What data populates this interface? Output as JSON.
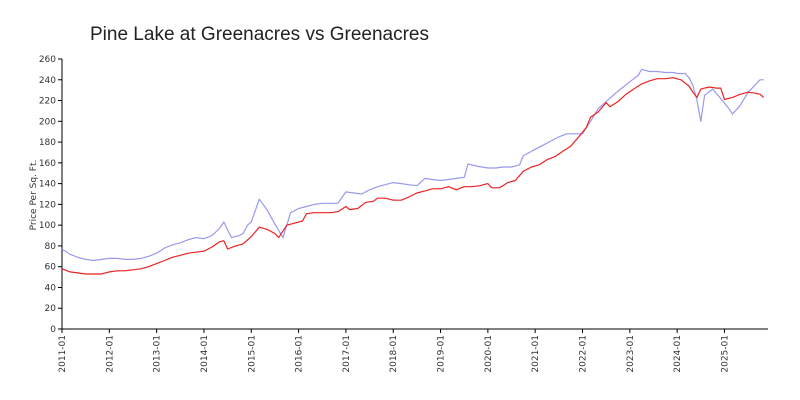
{
  "chart_data": {
    "type": "line",
    "title": "Pine Lake at Greenacres vs Greenacres",
    "xlabel": "",
    "ylabel": "Price Per Sq. Ft.",
    "ylim": [
      0,
      260
    ],
    "yticks": [
      0,
      20,
      40,
      60,
      80,
      100,
      120,
      140,
      160,
      180,
      200,
      220,
      240,
      260
    ],
    "xlim": [
      2011.0,
      2025.92
    ],
    "xticks": [
      {
        "x": 2011,
        "label": "2011-01"
      },
      {
        "x": 2012,
        "label": "2012-01"
      },
      {
        "x": 2013,
        "label": "2013-01"
      },
      {
        "x": 2014,
        "label": "2014-01"
      },
      {
        "x": 2015,
        "label": "2015-01"
      },
      {
        "x": 2016,
        "label": "2016-01"
      },
      {
        "x": 2017,
        "label": "2017-01"
      },
      {
        "x": 2018,
        "label": "2018-01"
      },
      {
        "x": 2019,
        "label": "2019-01"
      },
      {
        "x": 2020,
        "label": "2020-01"
      },
      {
        "x": 2021,
        "label": "2021-01"
      },
      {
        "x": 2022,
        "label": "2022-01"
      },
      {
        "x": 2023,
        "label": "2023-01"
      },
      {
        "x": 2024,
        "label": "2024-01"
      },
      {
        "x": 2025,
        "label": "2025-01"
      }
    ],
    "grid": false,
    "series": [
      {
        "name": "Pine Lake at Greenacres",
        "color": "#9999ee",
        "points": [
          [
            2011.0,
            77
          ],
          [
            2011.17,
            72
          ],
          [
            2011.33,
            69
          ],
          [
            2011.5,
            67
          ],
          [
            2011.67,
            66
          ],
          [
            2011.83,
            67
          ],
          [
            2012.0,
            68
          ],
          [
            2012.17,
            68
          ],
          [
            2012.33,
            67
          ],
          [
            2012.5,
            67
          ],
          [
            2012.67,
            68
          ],
          [
            2012.83,
            70
          ],
          [
            2013.0,
            73
          ],
          [
            2013.17,
            78
          ],
          [
            2013.33,
            81
          ],
          [
            2013.5,
            83
          ],
          [
            2013.67,
            86
          ],
          [
            2013.83,
            88
          ],
          [
            2014.0,
            87
          ],
          [
            2014.17,
            90
          ],
          [
            2014.33,
            97
          ],
          [
            2014.42,
            103
          ],
          [
            2014.58,
            88
          ],
          [
            2014.75,
            90
          ],
          [
            2014.83,
            92
          ],
          [
            2014.92,
            100
          ],
          [
            2015.0,
            103
          ],
          [
            2015.17,
            125
          ],
          [
            2015.33,
            115
          ],
          [
            2015.5,
            101
          ],
          [
            2015.67,
            88
          ],
          [
            2015.83,
            112
          ],
          [
            2016.0,
            116
          ],
          [
            2016.17,
            118
          ],
          [
            2016.33,
            120
          ],
          [
            2016.5,
            121
          ],
          [
            2016.67,
            121
          ],
          [
            2016.83,
            121
          ],
          [
            2017.0,
            132
          ],
          [
            2017.17,
            131
          ],
          [
            2017.33,
            130
          ],
          [
            2017.5,
            134
          ],
          [
            2017.67,
            137
          ],
          [
            2017.83,
            139
          ],
          [
            2018.0,
            141
          ],
          [
            2018.17,
            140
          ],
          [
            2018.33,
            139
          ],
          [
            2018.5,
            138
          ],
          [
            2018.67,
            145
          ],
          [
            2018.83,
            144
          ],
          [
            2019.0,
            143
          ],
          [
            2019.17,
            144
          ],
          [
            2019.33,
            145
          ],
          [
            2019.5,
            146
          ],
          [
            2019.58,
            159
          ],
          [
            2019.75,
            157
          ],
          [
            2020.0,
            155
          ],
          [
            2020.17,
            155
          ],
          [
            2020.33,
            156
          ],
          [
            2020.5,
            156
          ],
          [
            2020.67,
            158
          ],
          [
            2020.75,
            167
          ],
          [
            2020.92,
            171
          ],
          [
            2021.0,
            173
          ],
          [
            2021.17,
            177
          ],
          [
            2021.33,
            181
          ],
          [
            2021.5,
            185
          ],
          [
            2021.67,
            188
          ],
          [
            2021.83,
            188
          ],
          [
            2022.0,
            188
          ],
          [
            2022.17,
            200
          ],
          [
            2022.33,
            212
          ],
          [
            2022.5,
            219
          ],
          [
            2022.67,
            226
          ],
          [
            2022.83,
            232
          ],
          [
            2023.0,
            238
          ],
          [
            2023.17,
            244
          ],
          [
            2023.25,
            250
          ],
          [
            2023.42,
            248
          ],
          [
            2023.58,
            248
          ],
          [
            2023.75,
            247
          ],
          [
            2023.92,
            247
          ],
          [
            2024.0,
            246
          ],
          [
            2024.17,
            246
          ],
          [
            2024.25,
            242
          ],
          [
            2024.33,
            235
          ],
          [
            2024.42,
            220
          ],
          [
            2024.5,
            200
          ],
          [
            2024.58,
            225
          ],
          [
            2024.75,
            231
          ],
          [
            2024.92,
            222
          ],
          [
            2025.08,
            213
          ],
          [
            2025.17,
            207
          ],
          [
            2025.33,
            215
          ],
          [
            2025.5,
            228
          ],
          [
            2025.67,
            236
          ],
          [
            2025.75,
            240
          ],
          [
            2025.83,
            240
          ]
        ]
      },
      {
        "name": "Greenacres",
        "color": "#ee2222",
        "points": [
          [
            2011.0,
            58
          ],
          [
            2011.17,
            55
          ],
          [
            2011.33,
            54
          ],
          [
            2011.5,
            53
          ],
          [
            2011.67,
            53
          ],
          [
            2011.83,
            53
          ],
          [
            2012.0,
            55
          ],
          [
            2012.17,
            56
          ],
          [
            2012.33,
            56
          ],
          [
            2012.5,
            57
          ],
          [
            2012.67,
            58
          ],
          [
            2012.83,
            60
          ],
          [
            2013.0,
            63
          ],
          [
            2013.17,
            66
          ],
          [
            2013.33,
            69
          ],
          [
            2013.5,
            71
          ],
          [
            2013.67,
            73
          ],
          [
            2013.83,
            74
          ],
          [
            2014.0,
            75
          ],
          [
            2014.17,
            79
          ],
          [
            2014.33,
            84
          ],
          [
            2014.42,
            85
          ],
          [
            2014.5,
            77
          ],
          [
            2014.67,
            80
          ],
          [
            2014.83,
            82
          ],
          [
            2015.0,
            89
          ],
          [
            2015.17,
            98
          ],
          [
            2015.33,
            96
          ],
          [
            2015.5,
            92
          ],
          [
            2015.58,
            88
          ],
          [
            2015.75,
            100
          ],
          [
            2015.92,
            102
          ],
          [
            2016.08,
            104
          ],
          [
            2016.17,
            111
          ],
          [
            2016.33,
            112
          ],
          [
            2016.5,
            112
          ],
          [
            2016.67,
            112
          ],
          [
            2016.83,
            113
          ],
          [
            2017.0,
            118
          ],
          [
            2017.08,
            115
          ],
          [
            2017.25,
            116
          ],
          [
            2017.42,
            122
          ],
          [
            2017.58,
            123
          ],
          [
            2017.67,
            126
          ],
          [
            2017.83,
            126
          ],
          [
            2018.0,
            124
          ],
          [
            2018.17,
            124
          ],
          [
            2018.33,
            127
          ],
          [
            2018.5,
            131
          ],
          [
            2018.67,
            133
          ],
          [
            2018.83,
            135
          ],
          [
            2019.0,
            135
          ],
          [
            2019.17,
            137
          ],
          [
            2019.33,
            134
          ],
          [
            2019.5,
            137
          ],
          [
            2019.67,
            137
          ],
          [
            2019.83,
            138
          ],
          [
            2020.0,
            140
          ],
          [
            2020.08,
            136
          ],
          [
            2020.25,
            136
          ],
          [
            2020.42,
            141
          ],
          [
            2020.58,
            143
          ],
          [
            2020.75,
            152
          ],
          [
            2020.92,
            156
          ],
          [
            2021.08,
            158
          ],
          [
            2021.25,
            163
          ],
          [
            2021.42,
            166
          ],
          [
            2021.58,
            171
          ],
          [
            2021.75,
            176
          ],
          [
            2021.92,
            185
          ],
          [
            2022.08,
            194
          ],
          [
            2022.17,
            204
          ],
          [
            2022.33,
            209
          ],
          [
            2022.5,
            218
          ],
          [
            2022.58,
            214
          ],
          [
            2022.75,
            219
          ],
          [
            2022.92,
            226
          ],
          [
            2023.08,
            231
          ],
          [
            2023.25,
            236
          ],
          [
            2023.42,
            239
          ],
          [
            2023.58,
            241
          ],
          [
            2023.75,
            241
          ],
          [
            2023.92,
            242
          ],
          [
            2024.08,
            240
          ],
          [
            2024.25,
            234
          ],
          [
            2024.33,
            228
          ],
          [
            2024.42,
            223
          ],
          [
            2024.5,
            231
          ],
          [
            2024.67,
            233
          ],
          [
            2024.83,
            232
          ],
          [
            2024.92,
            232
          ],
          [
            2025.0,
            221
          ],
          [
            2025.17,
            223
          ],
          [
            2025.33,
            226
          ],
          [
            2025.5,
            228
          ],
          [
            2025.67,
            227
          ],
          [
            2025.75,
            226
          ],
          [
            2025.83,
            223
          ]
        ]
      }
    ]
  }
}
